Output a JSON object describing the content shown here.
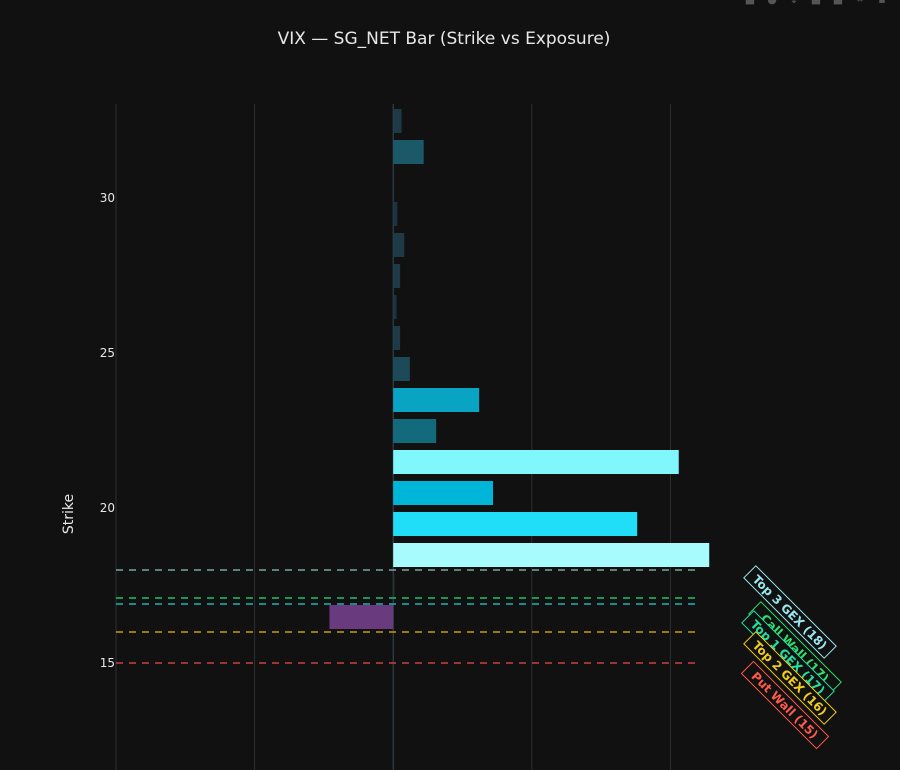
{
  "modebar": {
    "icons": [
      "camera-icon",
      "zoom-icon",
      "pan-icon",
      "zoom-in-icon",
      "zoom-out-icon",
      "autoscale-icon",
      "reset-icon"
    ]
  },
  "chart_data": {
    "type": "bar",
    "orientation": "horizontal",
    "title": "VIX — SG_NET Bar (Strike vs Exposure)",
    "xlabel": "",
    "ylabel": "Strike",
    "y_ticks": [
      15,
      20,
      25,
      30
    ],
    "ylim": [
      12.0,
      33.5
    ],
    "xlim": [
      -1.0,
      1.15
    ],
    "grid": true,
    "background": "#111111",
    "bars": [
      {
        "strike": 32,
        "value": 0.03,
        "color": "#1d3a46"
      },
      {
        "strike": 31,
        "value": 0.11,
        "color": "#1b5868"
      },
      {
        "strike": 29,
        "value": 0.015,
        "color": "#1b3440"
      },
      {
        "strike": 28,
        "value": 0.04,
        "color": "#1d3a46"
      },
      {
        "strike": 27,
        "value": 0.025,
        "color": "#1d3a46"
      },
      {
        "strike": 26,
        "value": 0.012,
        "color": "#1b3440"
      },
      {
        "strike": 25,
        "value": 0.025,
        "color": "#1d3a46"
      },
      {
        "strike": 24,
        "value": 0.06,
        "color": "#1d4a58"
      },
      {
        "strike": 23,
        "value": 0.31,
        "color": "#09a3c4"
      },
      {
        "strike": 22,
        "value": 0.155,
        "color": "#136a7c"
      },
      {
        "strike": 21,
        "value": 1.03,
        "color": "#7ff7fc"
      },
      {
        "strike": 20,
        "value": 0.36,
        "color": "#00b6d8"
      },
      {
        "strike": 19,
        "value": 0.88,
        "color": "#20def8"
      },
      {
        "strike": 18,
        "value": 1.14,
        "color": "#a8fbfc"
      },
      {
        "strike": 17,
        "value": 0.005,
        "color": "#2a2a2a"
      },
      {
        "strike": 16,
        "value": -0.23,
        "color": "#6a3a7e"
      }
    ],
    "reference_lines": [
      {
        "label": "Top 3 GEX (18)",
        "strike": 18,
        "color": "#6b8f8f"
      },
      {
        "label": "Call Wall (17)",
        "strike": 17,
        "color": "#1fa860"
      },
      {
        "label": "Top 1 GEX (17)",
        "strike": 17,
        "color": "#1f9aa0"
      },
      {
        "label": "Top 2 GEX (16)",
        "strike": 16,
        "color": "#a88a10"
      },
      {
        "label": "Put Wall (15)",
        "strike": 15,
        "color": "#b03a3a"
      }
    ],
    "annotation_colors": {
      "Top 3 GEX (18)": "#9ae8ef",
      "Call Wall (17)": "#2fe06a",
      "Top 1 GEX (17)": "#22e0a0",
      "Top 2 GEX (16)": "#f2cc1a",
      "Put Wall (15)": "#ff5a4a"
    }
  }
}
